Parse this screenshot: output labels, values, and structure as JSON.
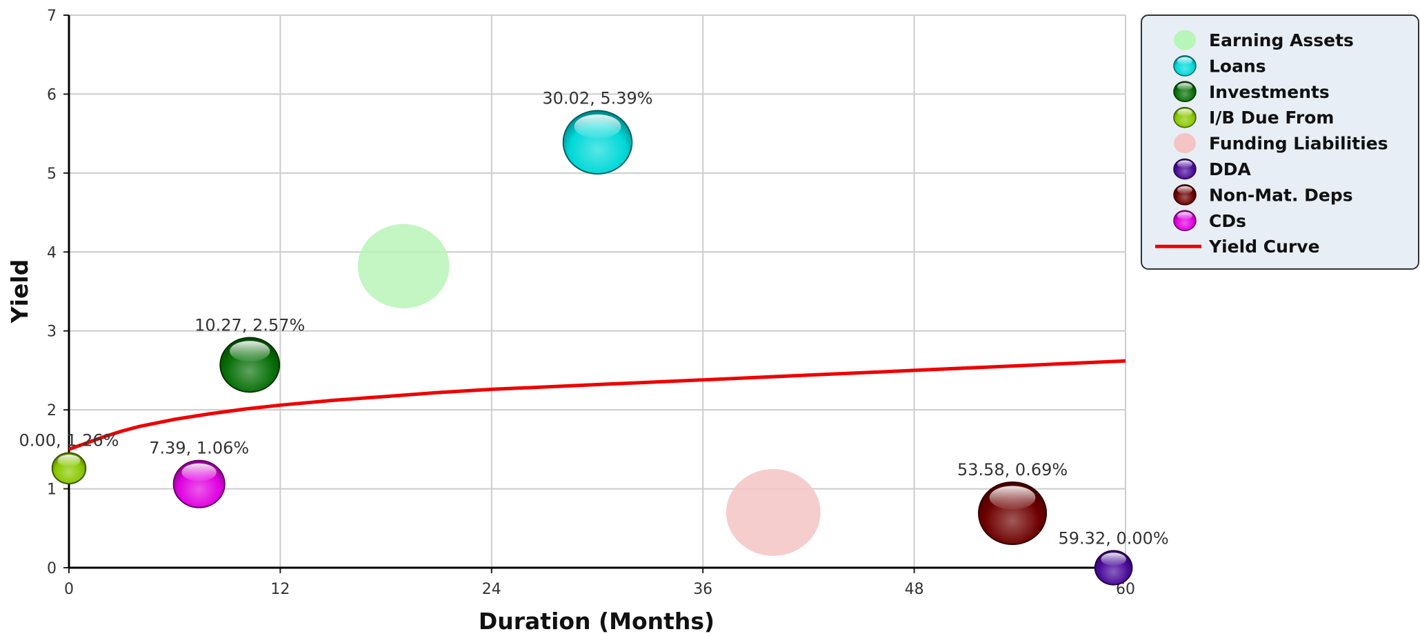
{
  "chart_data": {
    "type": "bubble",
    "title": "",
    "xlabel": "Duration (Months)",
    "ylabel": "Yield",
    "xlim": [
      0,
      60
    ],
    "ylim": [
      0,
      7
    ],
    "x_ticks": [
      "0",
      "12",
      "24",
      "36",
      "48",
      "60"
    ],
    "y_ticks": [
      "0",
      "1",
      "2",
      "3",
      "4",
      "5",
      "6",
      "7"
    ],
    "grid": true,
    "legend_position": "top-right",
    "series": [
      {
        "name": "Earning Assets",
        "color": "#b8f5b8",
        "style": "flat",
        "x": 19.0,
        "y": 3.82,
        "size": 2.6,
        "label": ""
      },
      {
        "name": "Loans",
        "color": "#00d8d8",
        "style": "glossy",
        "x": 30.02,
        "y": 5.39,
        "size": 1.95,
        "label": "30.02, 5.39%"
      },
      {
        "name": "Investments",
        "color": "#087008",
        "style": "glossy",
        "x": 10.27,
        "y": 2.57,
        "size": 1.68,
        "label": "10.27, 2.57%"
      },
      {
        "name": "I/B Due From",
        "color": "#8ac800",
        "style": "glossy",
        "x": 0.0,
        "y": 1.26,
        "size": 0.95,
        "label": "0.00, 1.26%"
      },
      {
        "name": "Funding Liabilities",
        "color": "#f5c4c4",
        "style": "flat",
        "x": 40.0,
        "y": 0.7,
        "size": 2.68,
        "label": ""
      },
      {
        "name": "DDA",
        "color": "#4a0a9a",
        "style": "glossy",
        "x": 59.32,
        "y": 0.0,
        "size": 1.05,
        "label": "59.32, 0.00%"
      },
      {
        "name": "Non-Mat. Deps",
        "color": "#6e0000",
        "style": "glossy",
        "x": 53.58,
        "y": 0.69,
        "size": 1.92,
        "label": "53.58, 0.69%"
      },
      {
        "name": "CDs",
        "color": "#e000e0",
        "style": "glossy",
        "x": 7.39,
        "y": 1.06,
        "size": 1.45,
        "label": "7.39, 1.06%"
      }
    ],
    "yield_curve": {
      "name": "Yield Curve",
      "color": "#ee0000",
      "x": [
        0,
        1,
        2,
        3,
        4,
        6,
        8,
        10,
        12,
        15,
        18,
        21,
        24,
        27,
        30,
        33,
        36,
        39,
        42,
        45,
        48,
        51,
        54,
        57,
        60
      ],
      "y": [
        1.5,
        1.58,
        1.66,
        1.73,
        1.79,
        1.88,
        1.95,
        2.01,
        2.06,
        2.12,
        2.17,
        2.22,
        2.26,
        2.29,
        2.32,
        2.35,
        2.38,
        2.41,
        2.44,
        2.47,
        2.5,
        2.53,
        2.56,
        2.59,
        2.62
      ]
    }
  }
}
